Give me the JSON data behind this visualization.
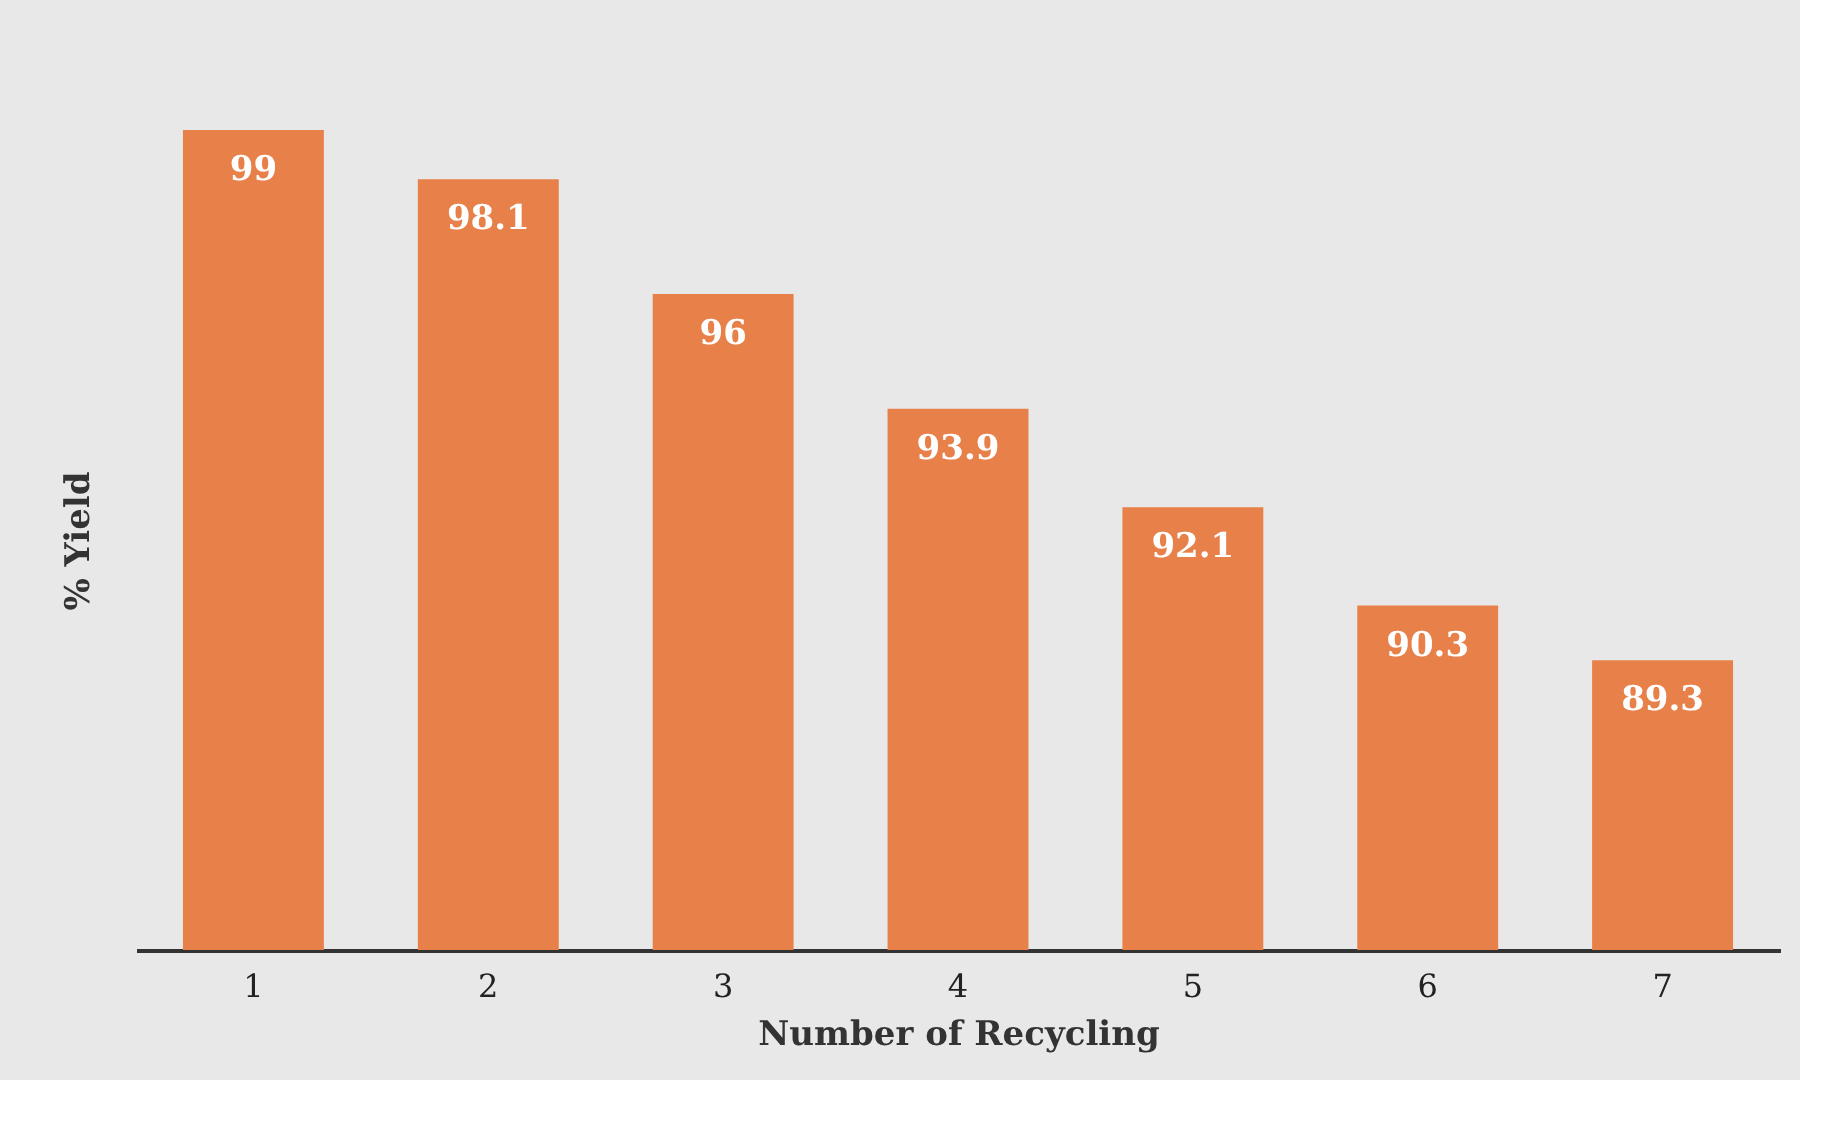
{
  "chart_data": {
    "type": "bar",
    "xlabel": "Number of Recycling",
    "ylabel": "% Yield",
    "categories": [
      "1",
      "2",
      "3",
      "4",
      "5",
      "6",
      "7"
    ],
    "values": [
      99,
      98.1,
      96,
      93.9,
      92.1,
      90.3,
      89.3
    ],
    "color": "#e8804a",
    "ylim": [
      84,
      99
    ],
    "data_labels": true,
    "grid": false,
    "tick_labels": "x"
  }
}
